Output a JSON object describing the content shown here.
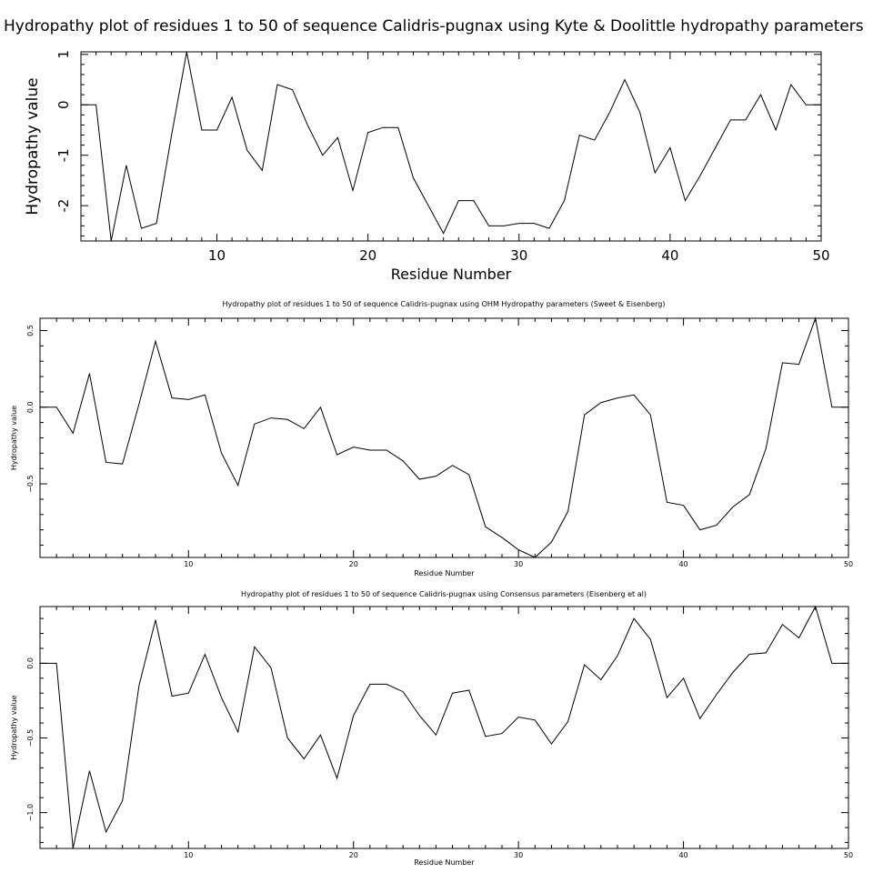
{
  "chart_data": [
    {
      "type": "line",
      "title": "Hydropathy plot of residues 1 to 50 of sequence Calidris-pugnax using Kyte & Doolittle hydropathy parameters",
      "xlabel": "Residue Number",
      "ylabel": "Hydropathy value",
      "xlim": [
        1,
        50
      ],
      "ylim": [
        -2.7,
        1.05
      ],
      "xticks": [
        10,
        20,
        30,
        40,
        50
      ],
      "yticks": [
        -2,
        -1,
        0,
        1
      ],
      "x": [
        1,
        2,
        3,
        4,
        5,
        6,
        7,
        8,
        9,
        10,
        11,
        12,
        13,
        14,
        15,
        16,
        17,
        18,
        19,
        20,
        21,
        22,
        23,
        24,
        25,
        26,
        27,
        28,
        29,
        30,
        31,
        32,
        33,
        34,
        35,
        36,
        37,
        38,
        39,
        40,
        41,
        42,
        43,
        44,
        45,
        46,
        47,
        48,
        49,
        50
      ],
      "series": [
        {
          "values": [
            0.0,
            0.0,
            -2.7,
            -1.2,
            -2.45,
            -2.35,
            -0.6,
            1.05,
            -0.5,
            -0.5,
            0.15,
            -0.9,
            -1.3,
            0.4,
            0.3,
            -0.4,
            -1.0,
            -0.65,
            -1.7,
            -0.55,
            -0.45,
            -0.45,
            -1.45,
            -2.0,
            -2.55,
            -1.9,
            -1.9,
            -2.4,
            -2.4,
            -2.35,
            -2.35,
            -2.45,
            -1.9,
            -0.6,
            -0.7,
            -0.15,
            0.5,
            -0.15,
            -1.35,
            -0.85,
            -1.9,
            -1.4,
            -0.85,
            -0.3,
            -0.3,
            0.2,
            -0.5,
            0.4,
            0.0,
            0.0
          ]
        }
      ]
    },
    {
      "type": "line",
      "title": "Hydropathy plot of residues 1 to 50 of sequence Calidris-pugnax using OHM  Hydropathy parameters (Sweet & Eisenberg)",
      "xlabel": "Residue Number",
      "ylabel": "Hydropathy value",
      "xlim": [
        1,
        50
      ],
      "ylim": [
        -0.98,
        0.58
      ],
      "xticks": [
        10,
        20,
        30,
        40,
        50
      ],
      "yticks": [
        -0.5,
        0.0,
        0.5
      ],
      "ytick_labels": [
        "−0.5",
        "0.0",
        "0.5"
      ],
      "x": [
        1,
        2,
        3,
        4,
        5,
        6,
        7,
        8,
        9,
        10,
        11,
        12,
        13,
        14,
        15,
        16,
        17,
        18,
        19,
        20,
        21,
        22,
        23,
        24,
        25,
        26,
        27,
        28,
        29,
        30,
        31,
        32,
        33,
        34,
        35,
        36,
        37,
        38,
        39,
        40,
        41,
        42,
        43,
        44,
        45,
        46,
        47,
        48,
        49,
        50
      ],
      "series": [
        {
          "values": [
            0.0,
            0.0,
            -0.17,
            0.22,
            -0.36,
            -0.37,
            0.02,
            0.43,
            0.06,
            0.05,
            0.08,
            -0.3,
            -0.51,
            -0.11,
            -0.07,
            -0.08,
            -0.14,
            0.0,
            -0.31,
            -0.26,
            -0.28,
            -0.28,
            -0.35,
            -0.47,
            -0.45,
            -0.38,
            -0.44,
            -0.78,
            -0.85,
            -0.93,
            -0.98,
            -0.88,
            -0.68,
            -0.05,
            0.03,
            0.06,
            0.08,
            -0.05,
            -0.62,
            -0.64,
            -0.8,
            -0.77,
            -0.65,
            -0.57,
            -0.27,
            0.29,
            0.28,
            0.58,
            0.0,
            0.0
          ]
        }
      ]
    },
    {
      "type": "line",
      "title": "Hydropathy plot of residues 1 to 50 of sequence Calidris-pugnax using Consensus parameters (Eisenberg et al)",
      "xlabel": "Residue Number",
      "ylabel": "Hydropathy value",
      "xlim": [
        1,
        50
      ],
      "ylim": [
        -1.24,
        0.38
      ],
      "xticks": [
        10,
        20,
        30,
        40,
        50
      ],
      "yticks": [
        -1.0,
        -0.5,
        0.0
      ],
      "ytick_labels": [
        "−1.0",
        "−0.5",
        "0.0"
      ],
      "x": [
        1,
        2,
        3,
        4,
        5,
        6,
        7,
        8,
        9,
        10,
        11,
        12,
        13,
        14,
        15,
        16,
        17,
        18,
        19,
        20,
        21,
        22,
        23,
        24,
        25,
        26,
        27,
        28,
        29,
        30,
        31,
        32,
        33,
        34,
        35,
        36,
        37,
        38,
        39,
        40,
        41,
        42,
        43,
        44,
        45,
        46,
        47,
        48,
        49,
        50
      ],
      "series": [
        {
          "values": [
            0.0,
            0.0,
            -1.24,
            -0.72,
            -1.13,
            -0.92,
            -0.15,
            0.29,
            -0.22,
            -0.2,
            0.06,
            -0.23,
            -0.46,
            0.11,
            -0.03,
            -0.5,
            -0.64,
            -0.48,
            -0.77,
            -0.35,
            -0.14,
            -0.14,
            -0.19,
            -0.35,
            -0.48,
            -0.2,
            -0.18,
            -0.49,
            -0.47,
            -0.36,
            -0.38,
            -0.54,
            -0.39,
            -0.01,
            -0.11,
            0.05,
            0.3,
            0.16,
            -0.23,
            -0.1,
            -0.37,
            -0.21,
            -0.06,
            0.06,
            0.07,
            0.26,
            0.17,
            0.38,
            0.0,
            0.0
          ]
        }
      ]
    }
  ]
}
